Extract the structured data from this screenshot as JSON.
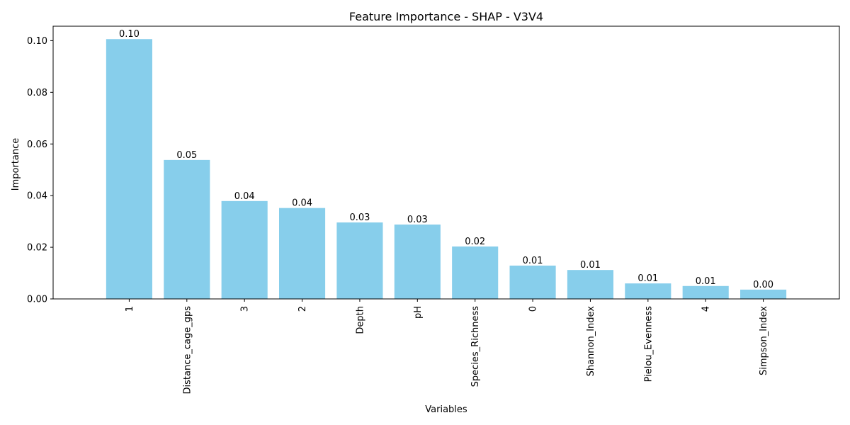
{
  "chart_data": {
    "type": "bar",
    "title": "Feature Importance - SHAP - V3V4",
    "xlabel": "Variables",
    "ylabel": "Importance",
    "categories": [
      "1",
      "Distance_cage_gps",
      "3",
      "2",
      "Depth",
      "pH",
      "Species_Richness",
      "0",
      "Shannon_Index",
      "Pielou_Evenness",
      "4",
      "Simpson_Index"
    ],
    "values": [
      0.1006,
      0.0538,
      0.0379,
      0.0352,
      0.0296,
      0.0288,
      0.0203,
      0.0129,
      0.0112,
      0.006,
      0.005,
      0.0036
    ],
    "data_labels": [
      "0.10",
      "0.05",
      "0.04",
      "0.04",
      "0.03",
      "0.03",
      "0.02",
      "0.01",
      "0.01",
      "0.01",
      "0.01",
      "0.00"
    ],
    "ylim": [
      0,
      0.1056
    ],
    "yticks": [
      0.0,
      0.02,
      0.04,
      0.06,
      0.08,
      0.1
    ],
    "ytick_labels": [
      "0.00",
      "0.02",
      "0.04",
      "0.06",
      "0.08",
      "0.10"
    ],
    "grid": false,
    "legend": "none",
    "bar_color": "#87ceeb",
    "axis_color": "#000000"
  }
}
